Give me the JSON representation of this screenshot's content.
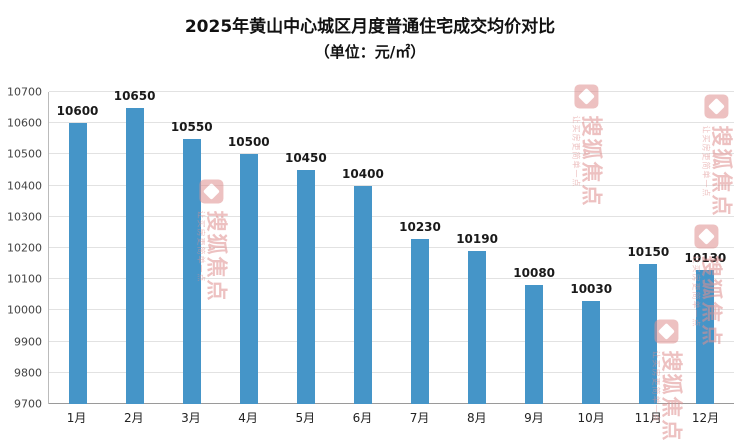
{
  "page": {
    "title": "2025年黄山中心城区月度普通住宅成交均价对比",
    "subtitle": "（单位：元/㎡）"
  },
  "chart_data": {
    "type": "bar",
    "title": "2025年黄山中心城区月度普通住宅成交均价对比",
    "subtitle": "（单位：元/㎡）",
    "categories": [
      "1月",
      "2月",
      "3月",
      "4月",
      "5月",
      "6月",
      "7月",
      "8月",
      "9月",
      "10月",
      "11月",
      "12月"
    ],
    "values": [
      10600,
      10650,
      10550,
      10500,
      10450,
      10400,
      10230,
      10190,
      10080,
      10030,
      10150,
      10130
    ],
    "xlabel": "",
    "ylabel": "",
    "ylim": [
      9700,
      10700
    ],
    "ytick_step": 100,
    "bar_color": "#4595c8",
    "grid": true,
    "value_labels": true,
    "legend": "none"
  },
  "watermark": {
    "text": "搜狐焦点",
    "subtext": "让买房更简单一点",
    "color": "#e09090"
  }
}
